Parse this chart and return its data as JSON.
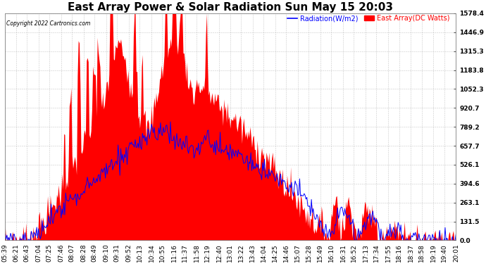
{
  "title": "East Array Power & Solar Radiation Sun May 15 20:03",
  "copyright": "Copyright 2022 Cartronics.com",
  "legend_radiation": "Radiation(W/m2)",
  "legend_array": "East Array(DC Watts)",
  "ylabel_right_values": [
    0.0,
    131.5,
    263.1,
    394.6,
    526.1,
    657.7,
    789.2,
    920.7,
    1052.3,
    1183.8,
    1315.3,
    1446.9,
    1578.4
  ],
  "ymax": 1578.4,
  "ymin": 0.0,
  "bg_color": "#ffffff",
  "plot_bg_color": "#ffffff",
  "grid_color": "#bbbbbb",
  "radiation_color": "#0000ff",
  "array_fill_color": "#ff0000",
  "title_fontsize": 11,
  "tick_fontsize": 6.5,
  "xlabel_rotation": 90,
  "time_labels": [
    "05:39",
    "06:21",
    "06:43",
    "07:04",
    "07:25",
    "07:46",
    "08:07",
    "08:28",
    "08:49",
    "09:10",
    "09:31",
    "09:52",
    "10:13",
    "10:34",
    "10:55",
    "11:16",
    "11:37",
    "11:58",
    "12:19",
    "12:40",
    "13:01",
    "13:22",
    "13:43",
    "14:04",
    "14:25",
    "14:46",
    "15:07",
    "15:28",
    "15:49",
    "16:10",
    "16:31",
    "16:52",
    "17:13",
    "17:34",
    "17:55",
    "18:16",
    "18:37",
    "18:58",
    "19:19",
    "19:40",
    "20:01"
  ]
}
